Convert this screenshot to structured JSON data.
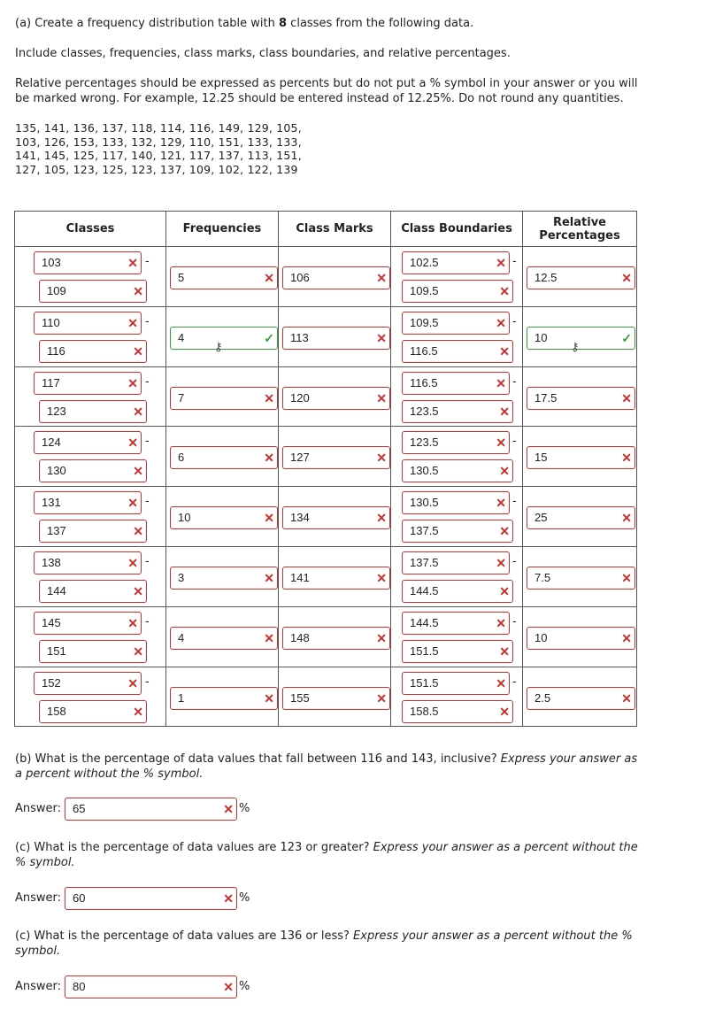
{
  "part_a": {
    "line1_pre": "(a) Create a frequency distribution table with ",
    "line1_num": "8",
    "line1_post": " classes from the following data.",
    "line2": "Include classes, frequencies, class marks, class boundaries, and relative percentages.",
    "line3": "Relative percentages should be expressed as percents but do not put a % symbol in your answer or you will",
    "line4": "be marked wrong. For example, 12.25 should be entered instead of 12.25%. Do not round any quantities.",
    "data_lines": [
      "135, 141, 136, 137, 118, 114, 116, 149, 129, 105,",
      "103, 126, 153, 133, 132, 129, 110, 151, 133, 133,",
      "141, 145, 125, 117, 140, 121, 117, 137, 113, 151,",
      "127, 105, 123, 125, 123, 137, 109, 102, 122, 139"
    ]
  },
  "table": {
    "headers": {
      "classes": "Classes",
      "frequencies": "Frequencies",
      "class_marks": "Class Marks",
      "class_boundaries": "Class Boundaries",
      "relative_line1": "Relative",
      "relative_line2": "Percentages"
    },
    "dash": "-",
    "wrong_mark": "✕",
    "right_mark": "✓",
    "key_icon": "⚷",
    "rows": [
      {
        "lower": "103",
        "upper": "109",
        "freq": "5",
        "freq_ok": false,
        "mark": "106",
        "blo": "102.5",
        "bhi": "109.5",
        "rel": "12.5",
        "rel_ok": false
      },
      {
        "lower": "110",
        "upper": "116",
        "freq": "4",
        "freq_ok": true,
        "mark": "113",
        "blo": "109.5",
        "bhi": "116.5",
        "rel": "10",
        "rel_ok": true
      },
      {
        "lower": "117",
        "upper": "123",
        "freq": "7",
        "freq_ok": false,
        "mark": "120",
        "blo": "116.5",
        "bhi": "123.5",
        "rel": "17.5",
        "rel_ok": false
      },
      {
        "lower": "124",
        "upper": "130",
        "freq": "6",
        "freq_ok": false,
        "mark": "127",
        "blo": "123.5",
        "bhi": "130.5",
        "rel": "15",
        "rel_ok": false
      },
      {
        "lower": "131",
        "upper": "137",
        "freq": "10",
        "freq_ok": false,
        "mark": "134",
        "blo": "130.5",
        "bhi": "137.5",
        "rel": "25",
        "rel_ok": false
      },
      {
        "lower": "138",
        "upper": "144",
        "freq": "3",
        "freq_ok": false,
        "mark": "141",
        "blo": "137.5",
        "bhi": "144.5",
        "rel": "7.5",
        "rel_ok": false
      },
      {
        "lower": "145",
        "upper": "151",
        "freq": "4",
        "freq_ok": false,
        "mark": "148",
        "blo": "144.5",
        "bhi": "151.5",
        "rel": "10",
        "rel_ok": false
      },
      {
        "lower": "152",
        "upper": "158",
        "freq": "1",
        "freq_ok": false,
        "mark": "155",
        "blo": "151.5",
        "bhi": "158.5",
        "rel": "2.5",
        "rel_ok": false
      }
    ]
  },
  "part_b": {
    "question": "(b) What is the percentage of data values that fall between 116 and 143, inclusive? ",
    "instruction_a": "Express your answer as",
    "instruction_b": "a percent without the % symbol.",
    "answer_label": "Answer:",
    "answer_value": "65",
    "unit": "%"
  },
  "part_c1": {
    "question": "(c) What is the percentage of data values are 123 or greater? ",
    "instruction_a": "Express your answer as a percent without the",
    "instruction_b": "% symbol.",
    "answer_label": "Answer:",
    "answer_value": "60",
    "unit": "%"
  },
  "part_c2": {
    "question": "(c) What is the percentage of data values are 136 or less? ",
    "instruction_a": "Express your answer as a percent without the %",
    "instruction_b": "symbol.",
    "answer_label": "Answer:",
    "answer_value": "80",
    "unit": "%"
  }
}
